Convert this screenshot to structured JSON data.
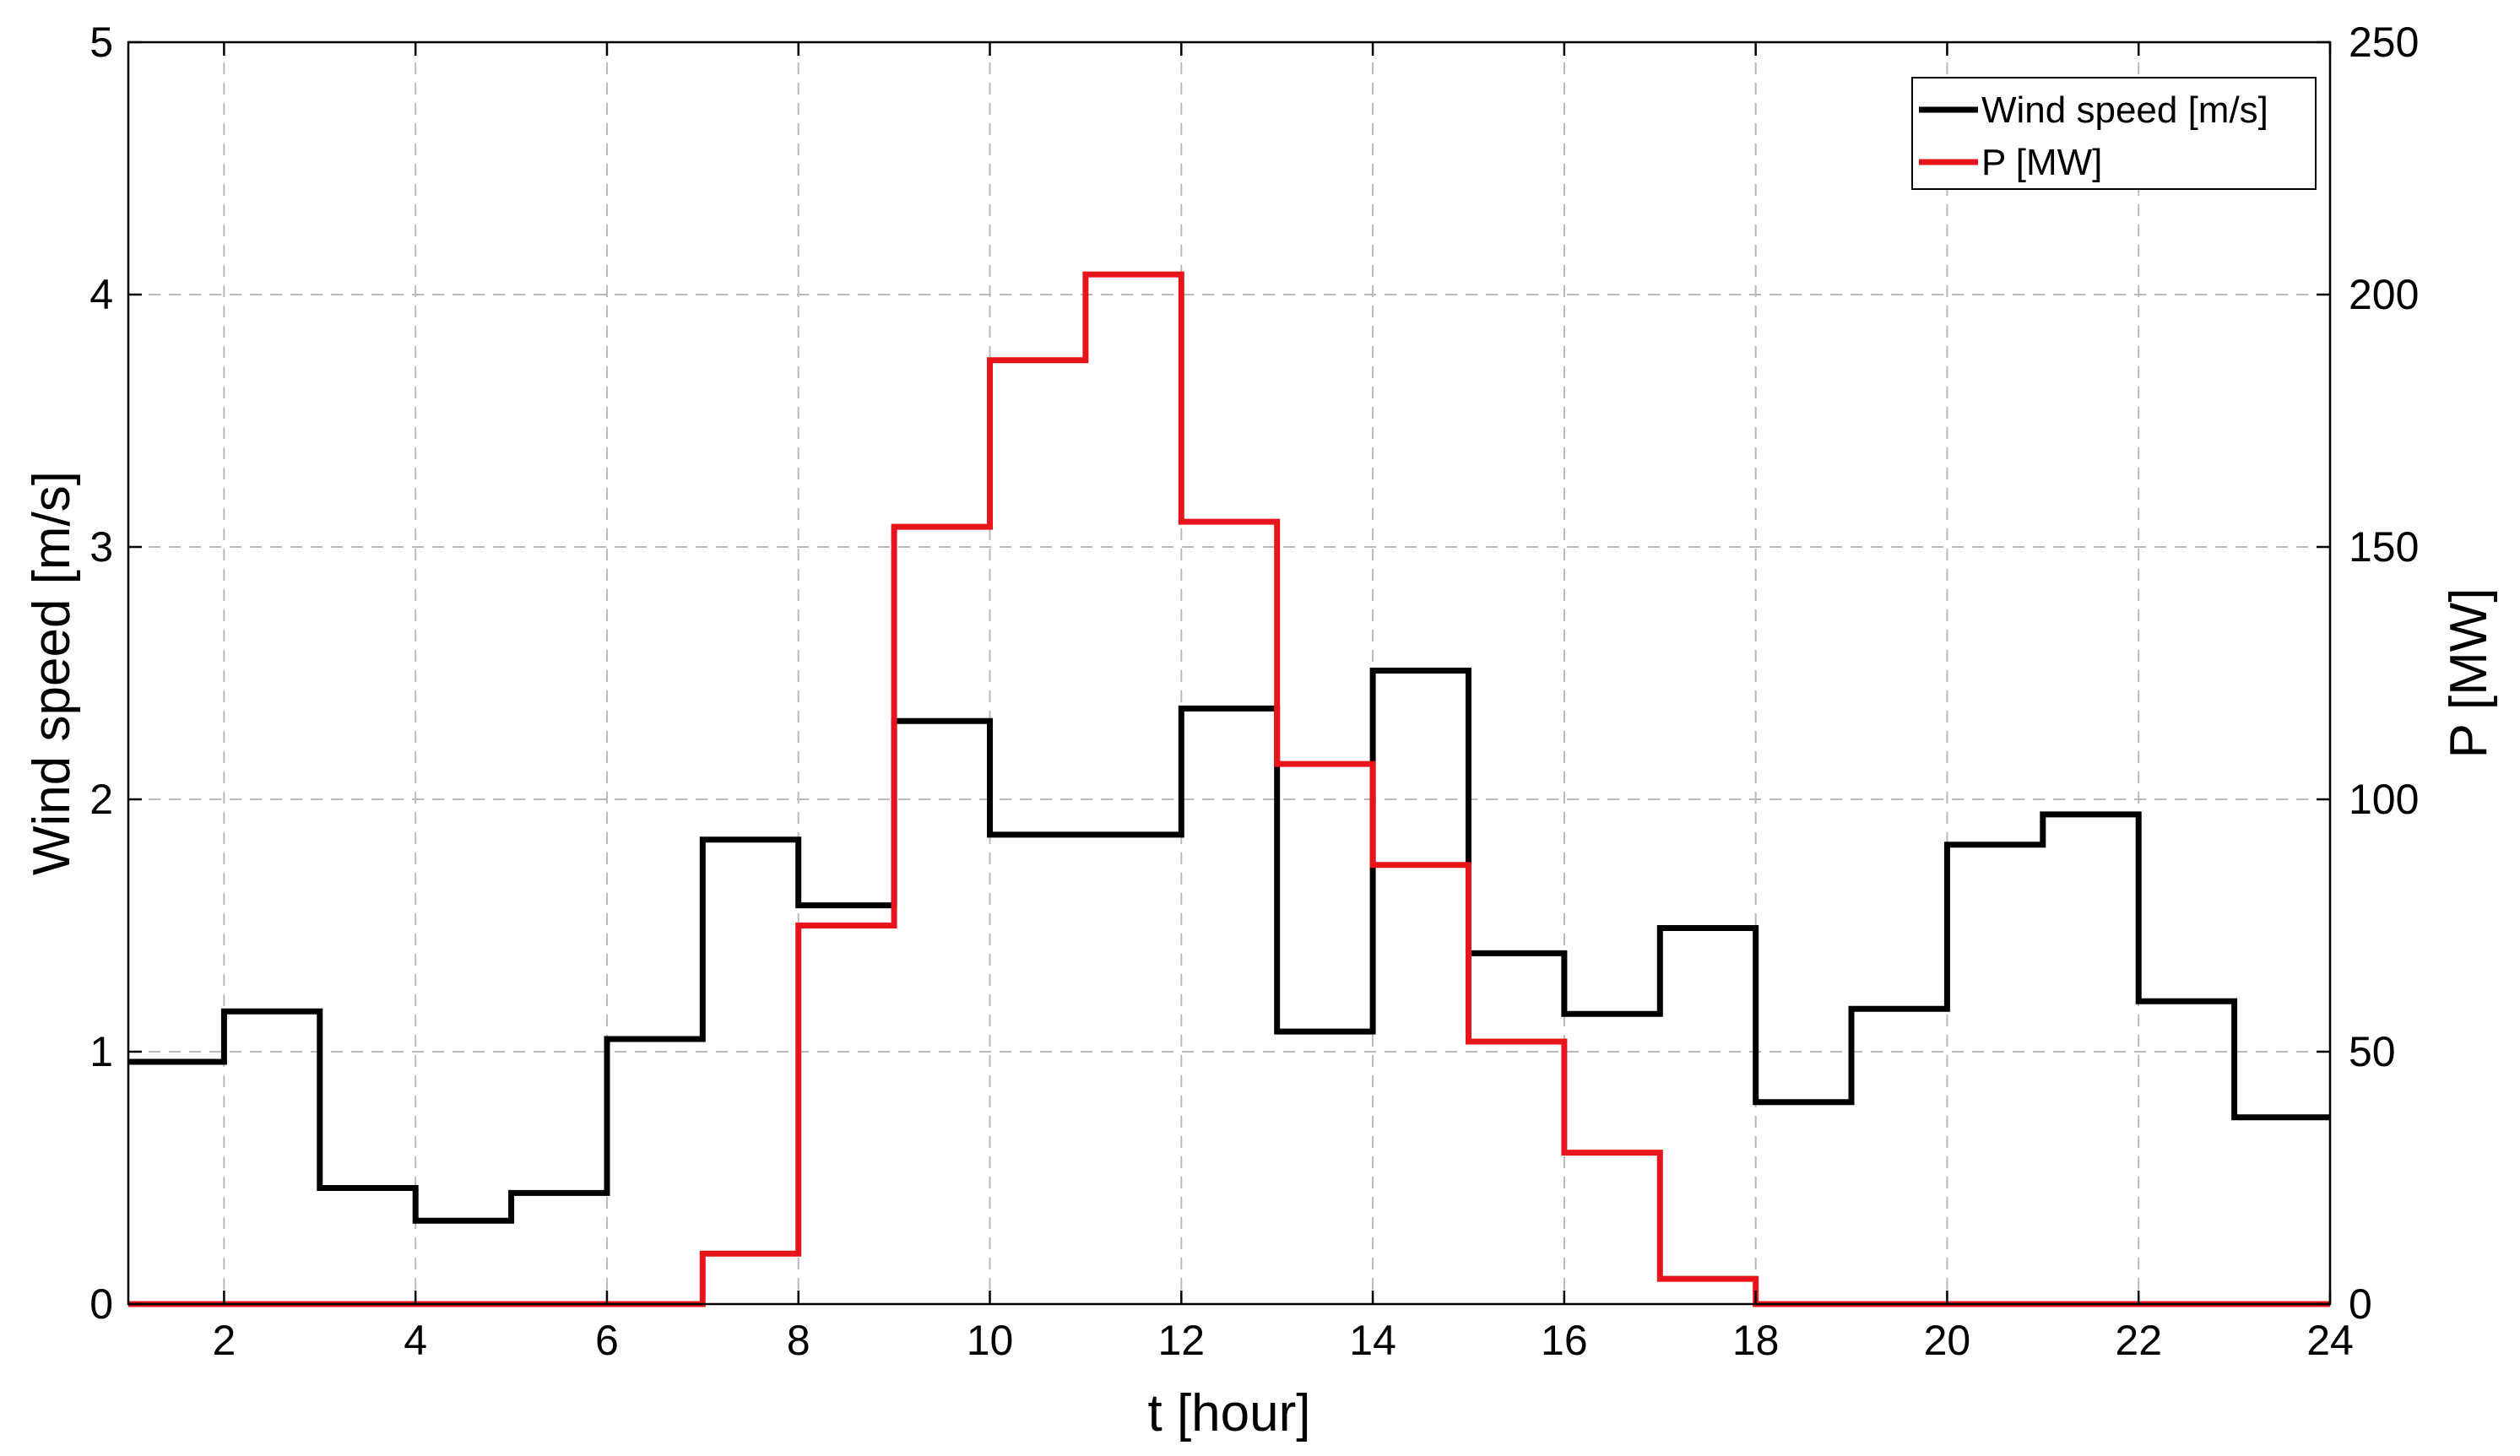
{
  "chart_data": {
    "type": "line",
    "step": "post",
    "x": [
      1,
      2,
      3,
      4,
      5,
      6,
      7,
      8,
      9,
      10,
      11,
      12,
      13,
      14,
      15,
      16,
      17,
      18,
      19,
      20,
      21,
      22,
      23,
      24
    ],
    "xlabel": "t [hour]",
    "ylabel_left": "Wind speed [m/s]",
    "ylabel_right": "P [MW]",
    "xlim": [
      1,
      24
    ],
    "ylim_left": [
      0,
      5
    ],
    "ylim_right": [
      0,
      250
    ],
    "x_ticks": [
      2,
      4,
      6,
      8,
      10,
      12,
      14,
      16,
      18,
      20,
      22,
      24
    ],
    "y_ticks_left": [
      0,
      1,
      2,
      3,
      4,
      5
    ],
    "y_ticks_right": [
      0,
      50,
      100,
      150,
      200,
      250
    ],
    "grid": true,
    "legend_position": "top-right",
    "series": [
      {
        "name": "Wind speed [m/s]",
        "axis": "left",
        "color": "#000000",
        "values": [
          0.96,
          1.16,
          0.46,
          0.33,
          0.44,
          1.05,
          1.84,
          1.58,
          2.31,
          1.86,
          1.86,
          2.36,
          1.08,
          2.51,
          1.39,
          1.15,
          1.49,
          0.8,
          1.17,
          1.82,
          1.94,
          1.2,
          0.74,
          0.74
        ]
      },
      {
        "name": "P [MW]",
        "axis": "right",
        "color": "#e8141b",
        "values": [
          0,
          0,
          0,
          0,
          0,
          0,
          10,
          75,
          154,
          187,
          204,
          155,
          107,
          87,
          52,
          30,
          5,
          0,
          0,
          0,
          0,
          0,
          0,
          0
        ]
      }
    ]
  }
}
